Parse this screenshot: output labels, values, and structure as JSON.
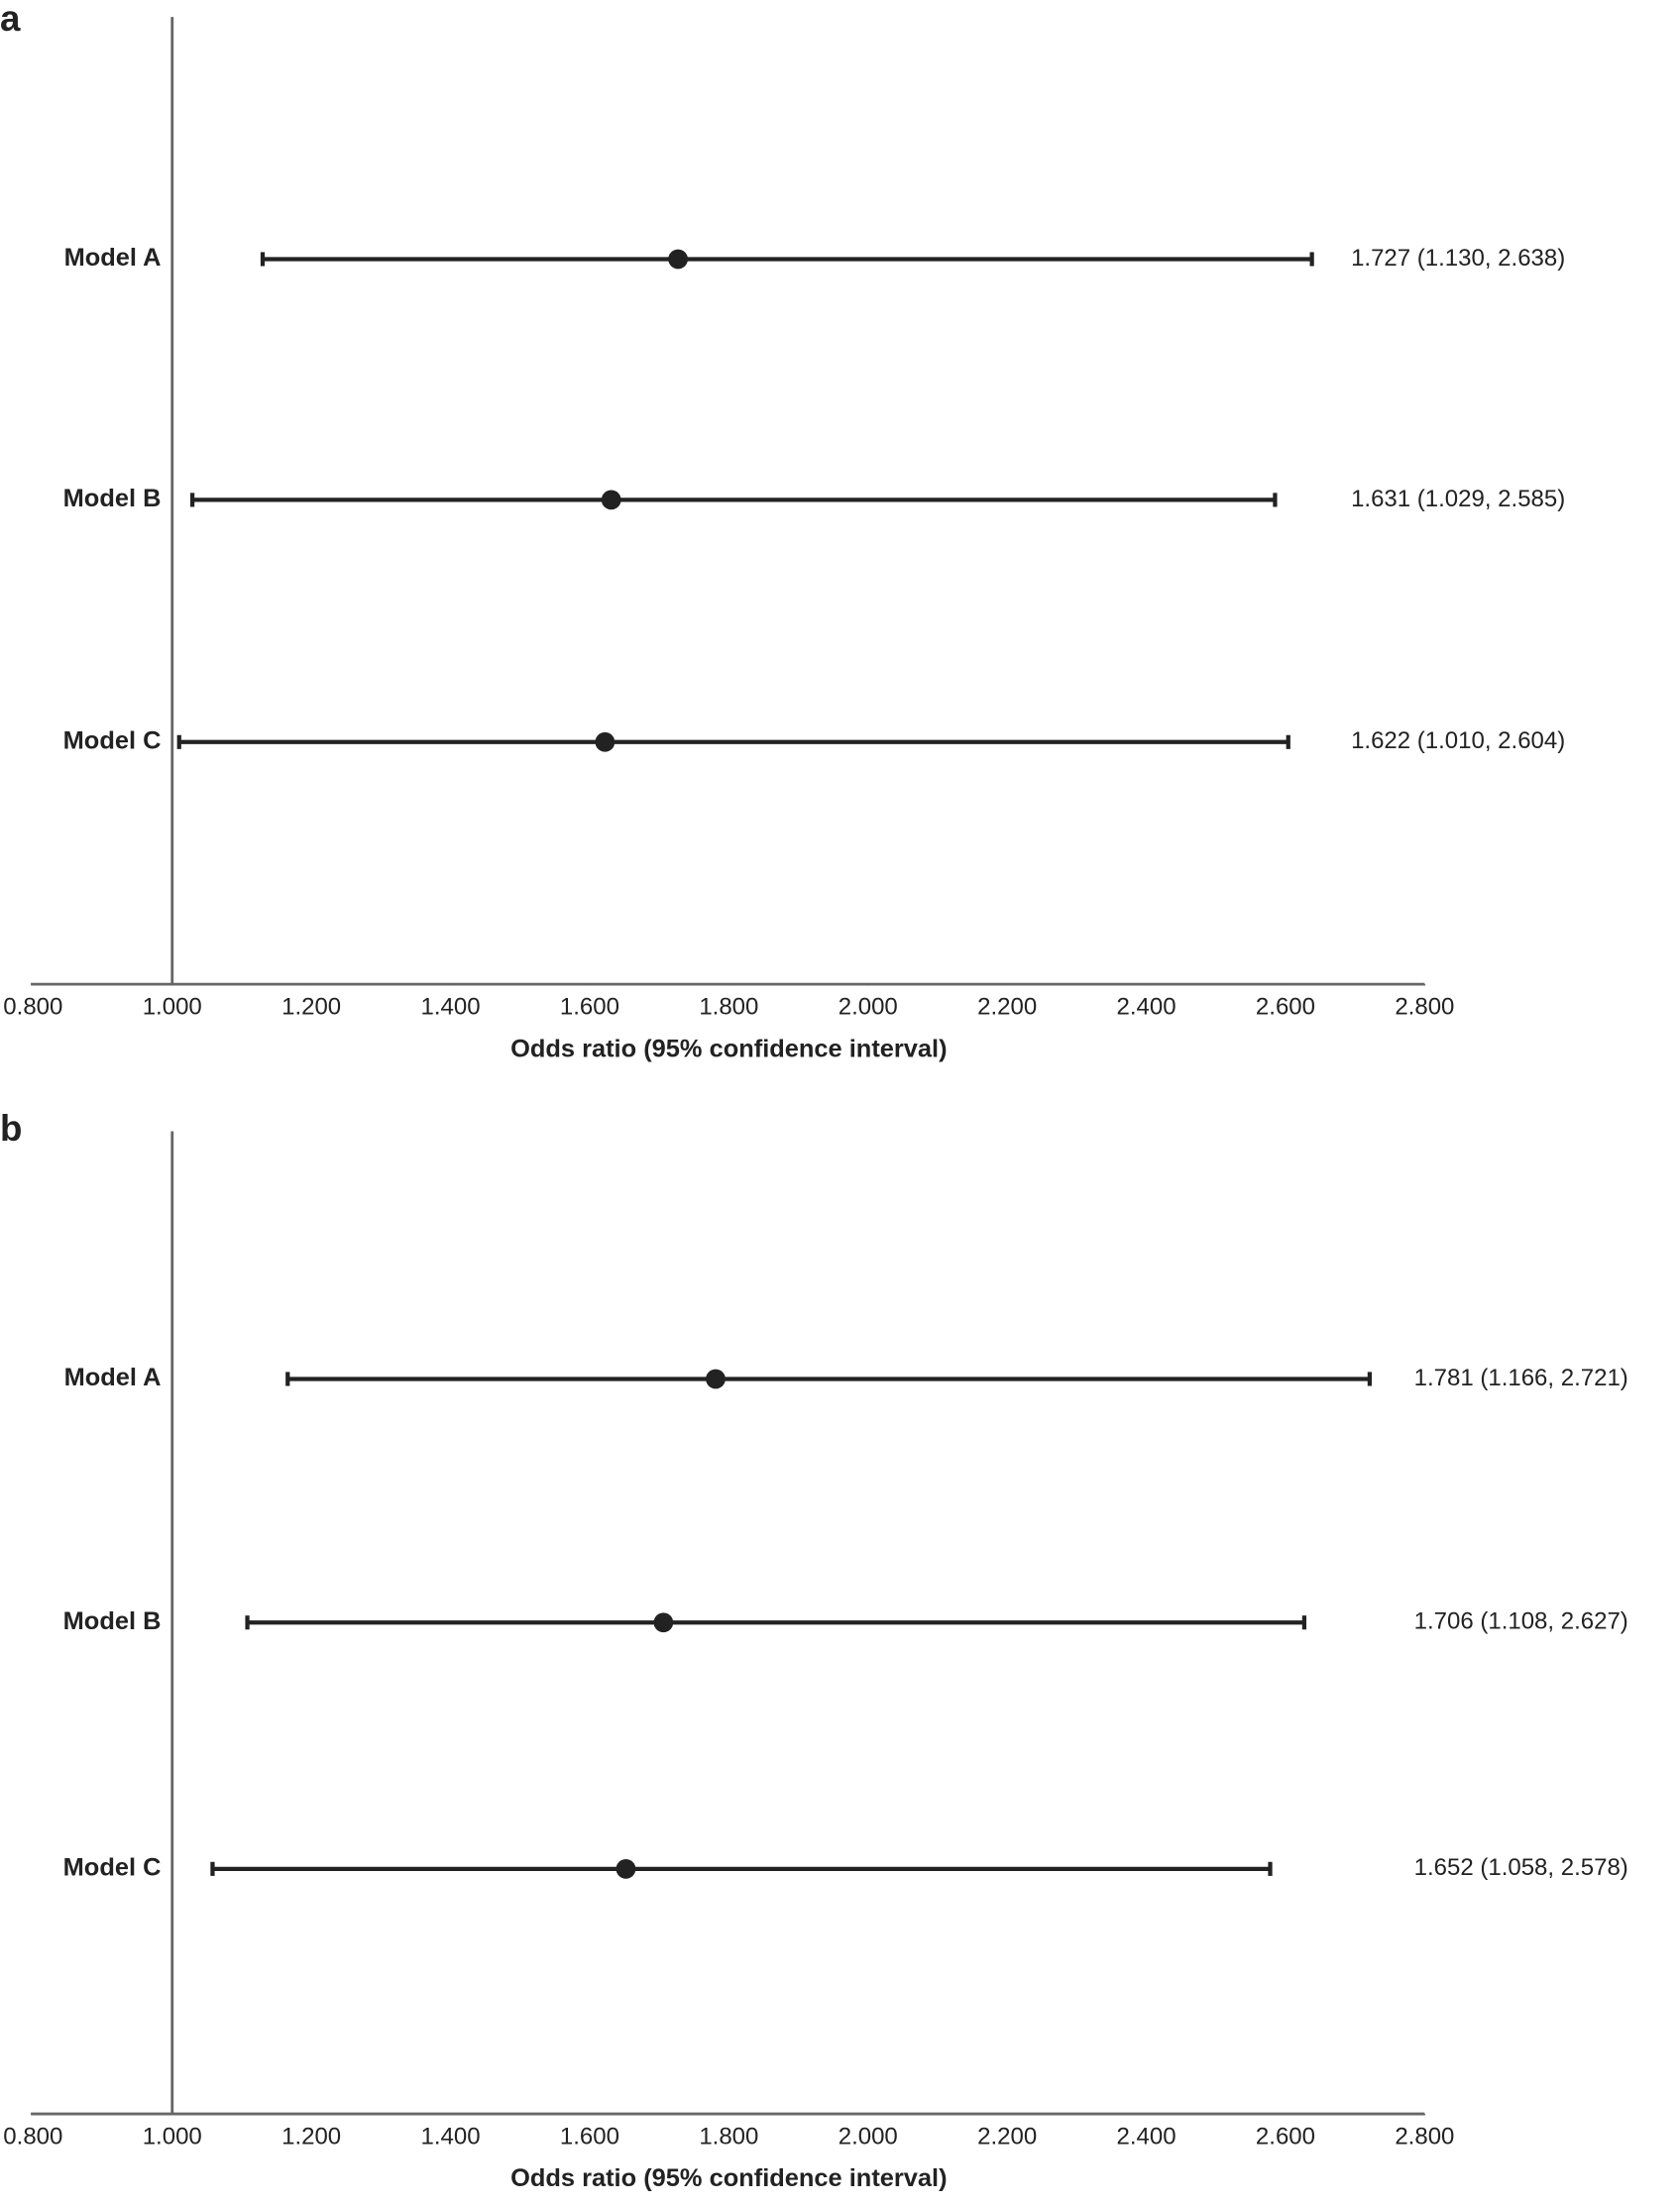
{
  "chart_data": [
    {
      "type": "forest",
      "panel_label": "a",
      "x_label": "Odds ratio (95% confidence interval)",
      "categories": [
        "Model A",
        "Model B",
        "Model C"
      ],
      "values": [
        1.727,
        1.631,
        1.622
      ],
      "lower": [
        1.13,
        1.029,
        1.01
      ],
      "upper": [
        2.638,
        2.585,
        2.604
      ],
      "value_labels": [
        "1.727 (1.130, 2.638)",
        "1.631 (1.029, 2.585)",
        "1.622 (1.010, 2.604)"
      ],
      "color": "#222222",
      "xlim": [
        0.8,
        2.8
      ],
      "xticks": [
        {
          "value": 0.8,
          "label": "0.800"
        },
        {
          "value": 1.0,
          "label": "1.000"
        },
        {
          "value": 1.2,
          "label": "1.200"
        },
        {
          "value": 1.4,
          "label": "1.400"
        },
        {
          "value": 1.6,
          "label": "1.600"
        },
        {
          "value": 1.8,
          "label": "1.800"
        },
        {
          "value": 2.0,
          "label": "2.000"
        },
        {
          "value": 2.2,
          "label": "2.200"
        },
        {
          "value": 2.4,
          "label": "2.400"
        },
        {
          "value": 2.6,
          "label": "2.600"
        },
        {
          "value": 2.8,
          "label": "2.800"
        }
      ]
    },
    {
      "type": "forest",
      "panel_label": "b",
      "x_label": "Odds ratio (95% confidence interval)",
      "categories": [
        "Model A",
        "Model B",
        "Model C"
      ],
      "values": [
        1.781,
        1.706,
        1.652
      ],
      "lower": [
        1.166,
        1.108,
        1.058
      ],
      "upper": [
        2.721,
        2.627,
        2.578
      ],
      "value_labels": [
        "1.781 (1.166, 2.721)",
        "1.706 (1.108, 2.627)",
        "1.652 (1.058, 2.578)"
      ],
      "color": "#222222",
      "xlim": [
        0.8,
        2.8
      ],
      "xticks": [
        {
          "value": 0.8,
          "label": "0.800"
        },
        {
          "value": 1.0,
          "label": "1.000"
        },
        {
          "value": 1.2,
          "label": "1.200"
        },
        {
          "value": 1.4,
          "label": "1.400"
        },
        {
          "value": 1.6,
          "label": "1.600"
        },
        {
          "value": 1.8,
          "label": "1.800"
        },
        {
          "value": 2.0,
          "label": "2.000"
        },
        {
          "value": 2.2,
          "label": "2.200"
        },
        {
          "value": 2.4,
          "label": "2.400"
        },
        {
          "value": 2.6,
          "label": "2.600"
        },
        {
          "value": 2.8,
          "label": "2.800"
        }
      ]
    }
  ]
}
